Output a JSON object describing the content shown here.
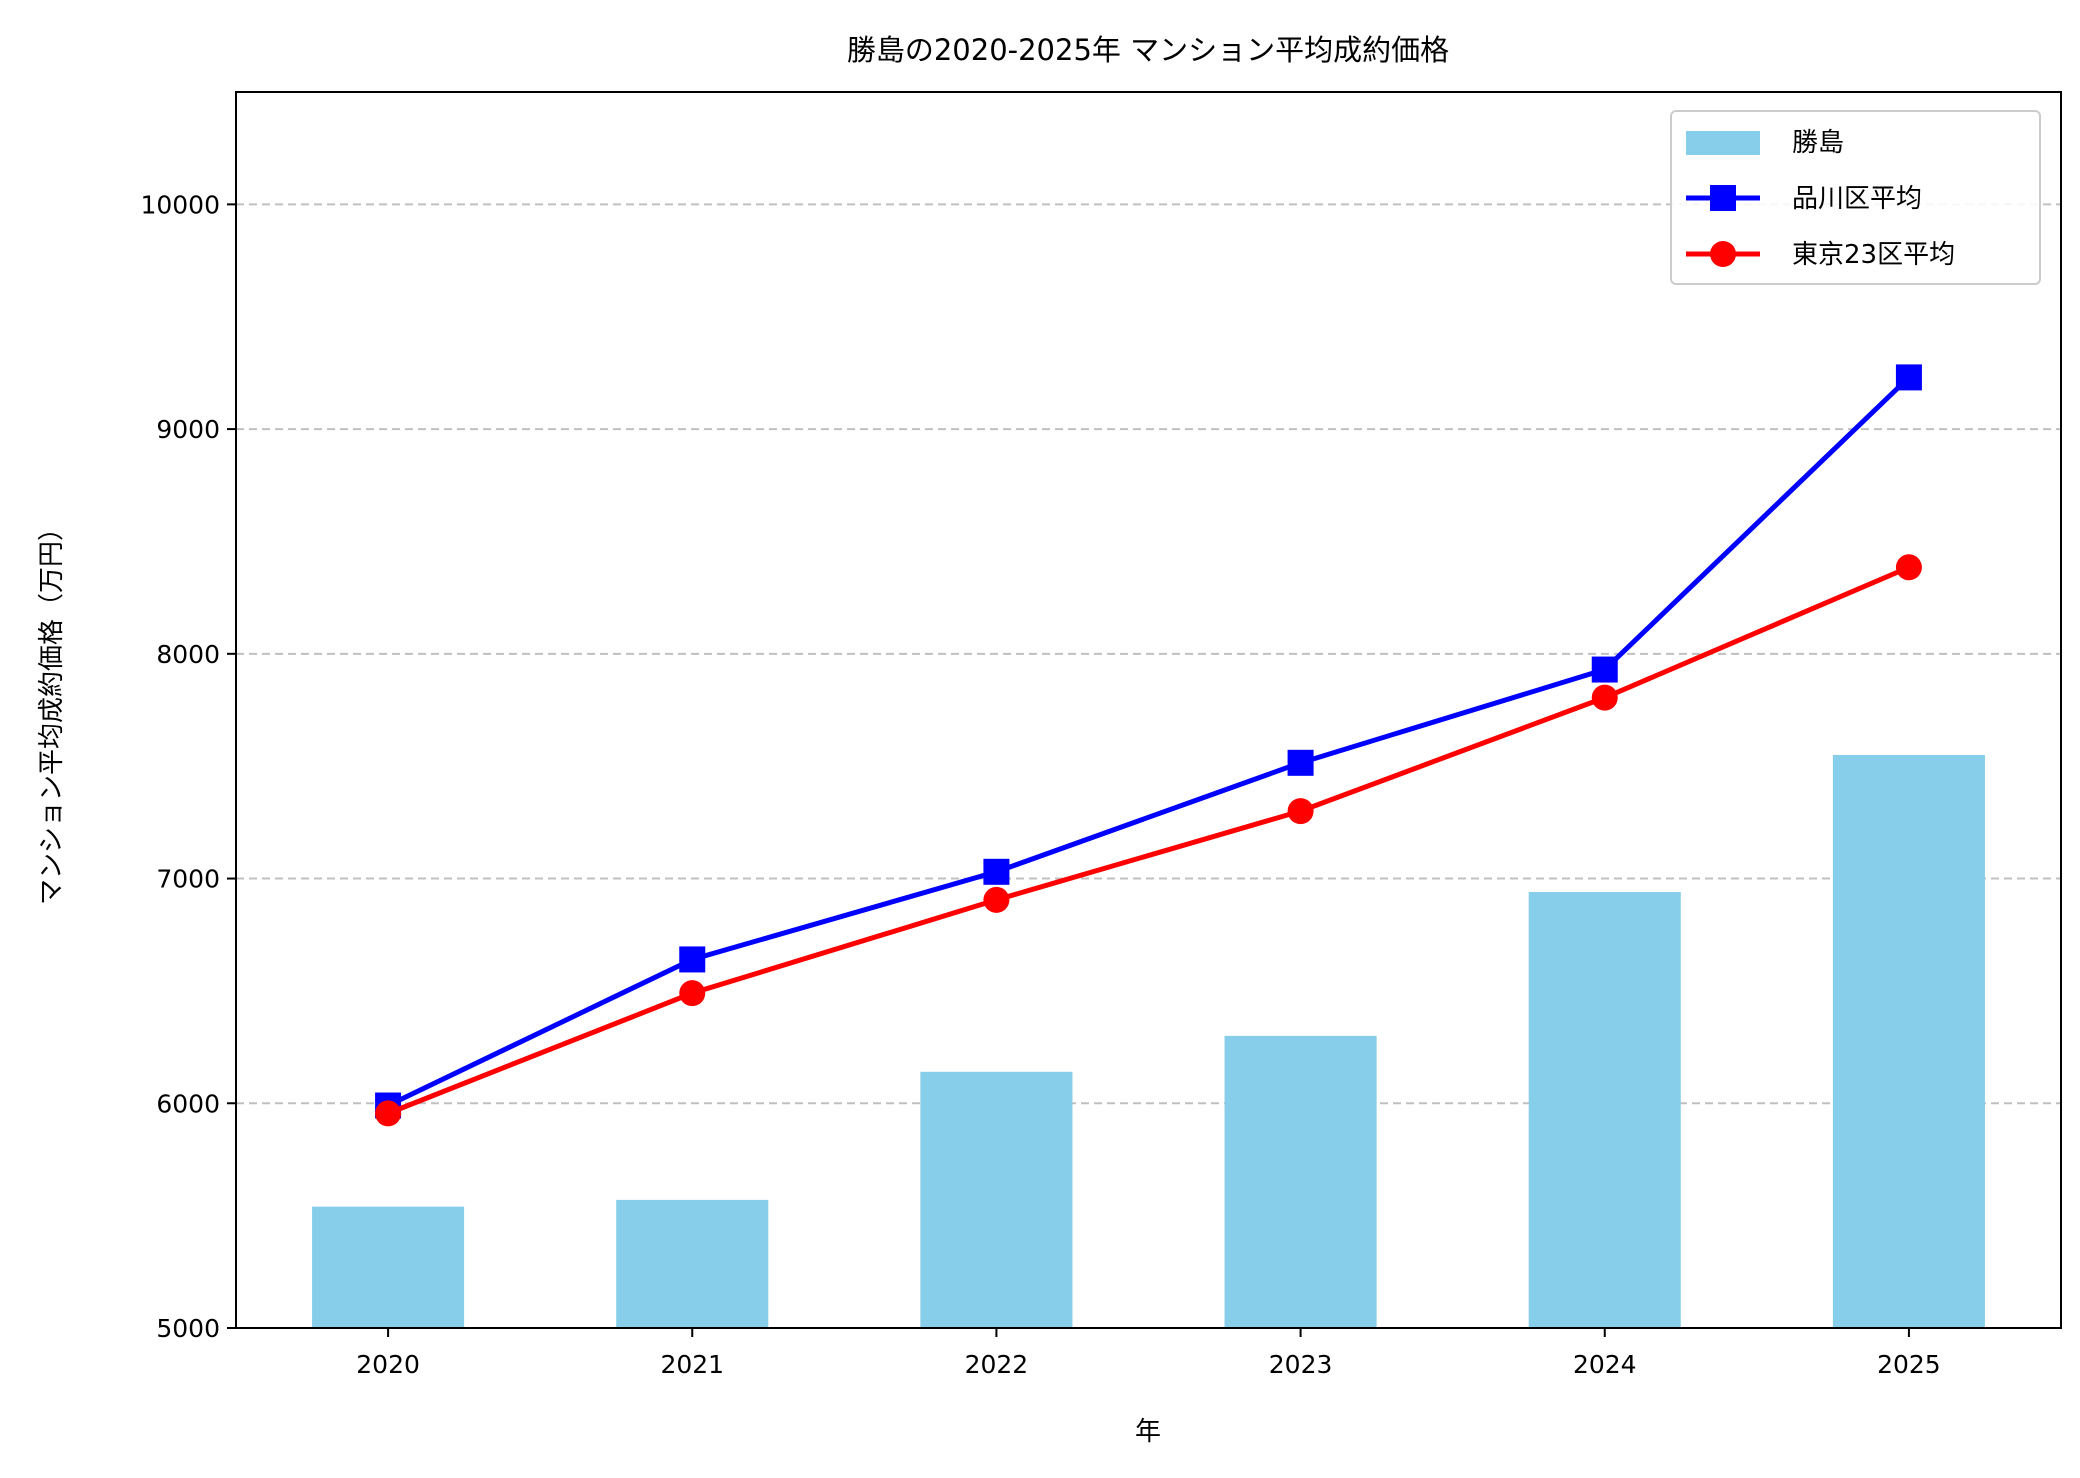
{
  "chart_data": {
    "type": "bar+line",
    "title": "勝島の2020-2025年 マンション平均成約価格",
    "xlabel": "年",
    "ylabel": "マンション平均成約価格（万円）",
    "categories": [
      "2020",
      "2021",
      "2022",
      "2023",
      "2024",
      "2025"
    ],
    "ylim": [
      5000,
      10500
    ],
    "yticks": [
      5000,
      6000,
      7000,
      8000,
      9000,
      10000
    ],
    "grid": "y-dashed",
    "legend_position": "top-right",
    "series": [
      {
        "name": "勝島",
        "kind": "bar",
        "color": "#87CEEB",
        "values": [
          5540,
          5570,
          6140,
          6300,
          6940,
          7550
        ]
      },
      {
        "name": "品川区平均",
        "kind": "line",
        "marker": "square",
        "color": "#0000FF",
        "values": [
          5990,
          6640,
          7030,
          7515,
          7930,
          9230
        ]
      },
      {
        "name": "東京23区平均",
        "kind": "line",
        "marker": "circle",
        "color": "#FF0000",
        "values": [
          5955,
          6490,
          6905,
          7300,
          7805,
          8385
        ]
      }
    ]
  }
}
